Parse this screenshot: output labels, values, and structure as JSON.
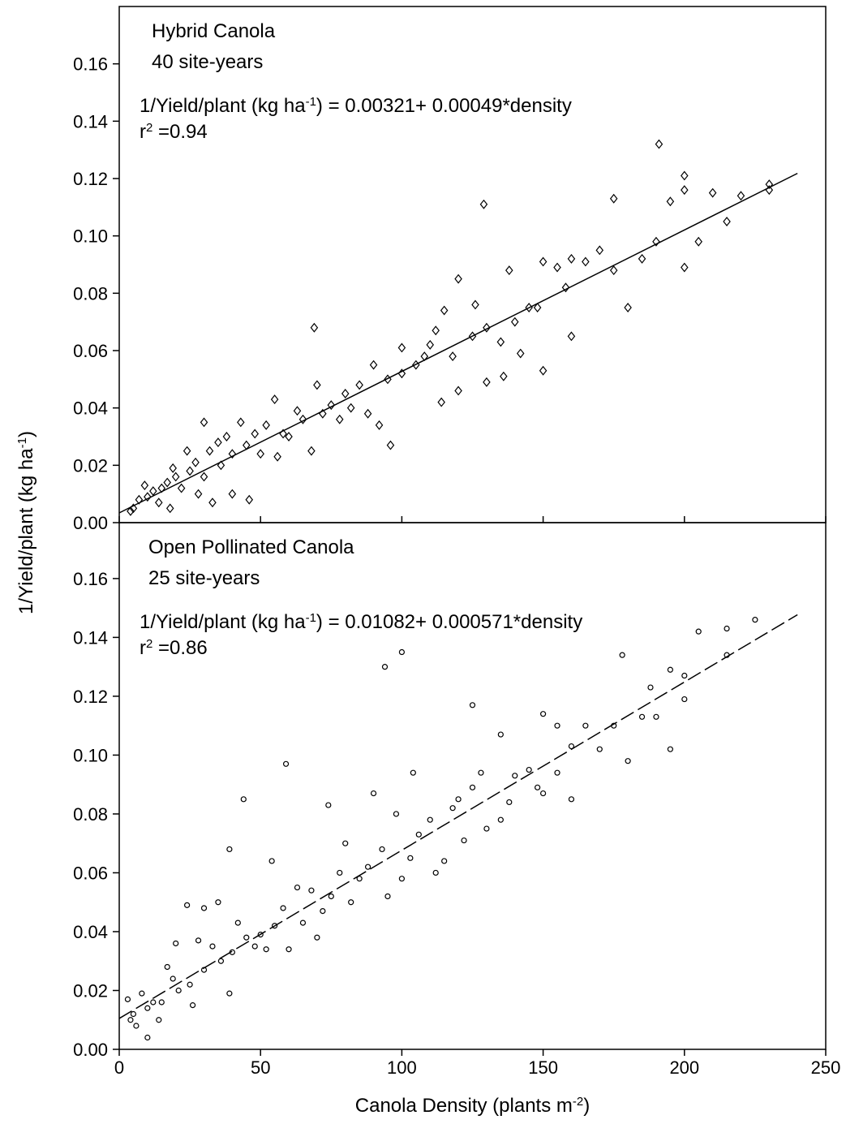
{
  "chart_data": [
    {
      "type": "scatter",
      "title": "Hybrid Canola",
      "subtitle": "40 site-years",
      "equation": [
        "1/Yield/plant (kg ha",
        "-1",
        ") = 0.00321+ 0.00049*density"
      ],
      "r2": [
        "r",
        "2",
        " =0.94"
      ],
      "ylabel": [
        "1/Yield/plant (kg ha",
        "-1",
        ")"
      ],
      "xlim": [
        0,
        250
      ],
      "ylim": [
        0,
        0.18
      ],
      "xticks": [
        0,
        50,
        100,
        150,
        200,
        250
      ],
      "show_xtick_labels": false,
      "yticks": [
        {
          "value": 0,
          "label": "0.00"
        },
        0.02,
        0.04,
        0.06,
        0.08,
        {
          "value": 0.1,
          "label": "0.10"
        },
        0.12,
        0.14,
        0.16
      ],
      "series": [
        {
          "marker": "diamond",
          "color": "#000000",
          "x": [
            4,
            5,
            7,
            9,
            10,
            12,
            14,
            15,
            17,
            18,
            19,
            20,
            22,
            24,
            25,
            27,
            28,
            30,
            30,
            32,
            33,
            35,
            36,
            38,
            40,
            40,
            43,
            45,
            46,
            48,
            50,
            52,
            55,
            56,
            58,
            60,
            63,
            65,
            68,
            69,
            70,
            72,
            75,
            78,
            80,
            82,
            85,
            88,
            90,
            92,
            95,
            96,
            100,
            100,
            105,
            108,
            110,
            112,
            114,
            115,
            118,
            120,
            120,
            125,
            126,
            129,
            130,
            130,
            135,
            136,
            138,
            140,
            142,
            145,
            148,
            150,
            150,
            155,
            158,
            160,
            160,
            165,
            170,
            175,
            175,
            180,
            185,
            190,
            191,
            195,
            200,
            200,
            200,
            205,
            210,
            215,
            220,
            230,
            230
          ],
          "values": [
            0.004,
            0.005,
            0.008,
            0.013,
            0.009,
            0.011,
            0.007,
            0.012,
            0.014,
            0.005,
            0.019,
            0.016,
            0.012,
            0.025,
            0.018,
            0.021,
            0.01,
            0.035,
            0.016,
            0.025,
            0.007,
            0.028,
            0.02,
            0.03,
            0.01,
            0.024,
            0.035,
            0.027,
            0.008,
            0.031,
            0.024,
            0.034,
            0.043,
            0.023,
            0.031,
            0.03,
            0.039,
            0.036,
            0.025,
            0.068,
            0.048,
            0.038,
            0.041,
            0.036,
            0.045,
            0.04,
            0.048,
            0.038,
            0.055,
            0.034,
            0.05,
            0.027,
            0.052,
            0.061,
            0.055,
            0.058,
            0.062,
            0.067,
            0.042,
            0.074,
            0.058,
            0.085,
            0.046,
            0.065,
            0.076,
            0.111,
            0.068,
            0.049,
            0.063,
            0.051,
            0.088,
            0.07,
            0.059,
            0.075,
            0.075,
            0.091,
            0.053,
            0.089,
            0.082,
            0.092,
            0.065,
            0.091,
            0.095,
            0.113,
            0.088,
            0.075,
            0.092,
            0.098,
            0.132,
            0.112,
            0.121,
            0.116,
            0.089,
            0.098,
            0.115,
            0.105,
            0.114,
            0.118,
            0.116
          ]
        }
      ],
      "fit": {
        "x": [
          0,
          240
        ],
        "values": [
          0.0034,
          0.1218
        ],
        "dashed": false,
        "color": "#000000"
      }
    },
    {
      "type": "scatter",
      "title": "Open Pollinated Canola",
      "subtitle": "25 site-years",
      "equation": [
        "1/Yield/plant (kg ha",
        "-1",
        ") = 0.01082+ 0.000571*density"
      ],
      "r2": [
        "r",
        "2",
        " =0.86"
      ],
      "xlabel": [
        "Canola Density (plants m",
        "-2",
        ")"
      ],
      "xlim": [
        0,
        250
      ],
      "ylim": [
        0,
        0.179
      ],
      "xticks": [
        0,
        50,
        100,
        150,
        200,
        250
      ],
      "show_xtick_labels": true,
      "yticks": [
        {
          "value": 0,
          "label": "0.00"
        },
        0.02,
        0.04,
        0.06,
        0.08,
        {
          "value": 0.1,
          "label": "0.10"
        },
        0.12,
        0.14,
        0.16
      ],
      "series": [
        {
          "marker": "circle",
          "color": "#000000",
          "x": [
            3,
            4,
            5,
            6,
            8,
            10,
            10,
            12,
            14,
            15,
            17,
            19,
            20,
            21,
            24,
            25,
            26,
            28,
            30,
            30,
            33,
            35,
            36,
            39,
            39,
            40,
            42,
            44,
            45,
            48,
            50,
            52,
            54,
            55,
            58,
            59,
            60,
            63,
            65,
            68,
            70,
            72,
            74,
            75,
            78,
            80,
            82,
            85,
            88,
            90,
            93,
            94,
            95,
            98,
            100,
            100,
            103,
            104,
            106,
            110,
            112,
            115,
            118,
            120,
            122,
            125,
            125,
            128,
            130,
            135,
            135,
            138,
            140,
            145,
            148,
            150,
            150,
            155,
            155,
            160,
            160,
            165,
            170,
            175,
            178,
            180,
            185,
            188,
            190,
            195,
            195,
            200,
            200,
            205,
            215,
            215,
            225
          ],
          "values": [
            0.017,
            0.01,
            0.012,
            0.008,
            0.019,
            0.004,
            0.014,
            0.016,
            0.01,
            0.016,
            0.028,
            0.024,
            0.036,
            0.02,
            0.049,
            0.022,
            0.015,
            0.037,
            0.048,
            0.027,
            0.035,
            0.05,
            0.03,
            0.068,
            0.019,
            0.033,
            0.043,
            0.085,
            0.038,
            0.035,
            0.039,
            0.034,
            0.064,
            0.042,
            0.048,
            0.097,
            0.034,
            0.055,
            0.043,
            0.054,
            0.038,
            0.047,
            0.083,
            0.052,
            0.06,
            0.07,
            0.05,
            0.058,
            0.062,
            0.087,
            0.068,
            0.13,
            0.052,
            0.08,
            0.135,
            0.058,
            0.065,
            0.094,
            0.073,
            0.078,
            0.06,
            0.064,
            0.082,
            0.085,
            0.071,
            0.117,
            0.089,
            0.094,
            0.075,
            0.107,
            0.078,
            0.084,
            0.093,
            0.095,
            0.089,
            0.114,
            0.087,
            0.11,
            0.094,
            0.103,
            0.085,
            0.11,
            0.102,
            0.11,
            0.134,
            0.098,
            0.113,
            0.123,
            0.113,
            0.129,
            0.102,
            0.127,
            0.119,
            0.142,
            0.143,
            0.134,
            0.146
          ]
        }
      ],
      "fit": {
        "x": [
          0,
          240
        ],
        "values": [
          0.0105,
          0.1477
        ],
        "dashed": true,
        "color": "#000000"
      }
    }
  ]
}
